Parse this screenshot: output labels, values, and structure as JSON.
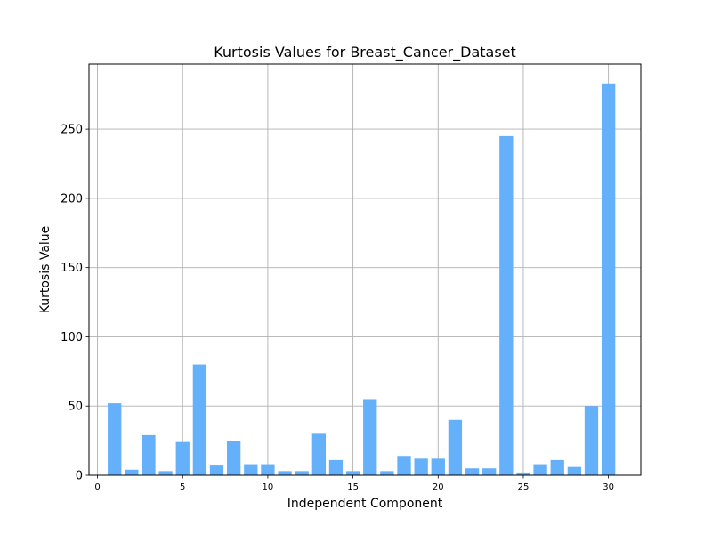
{
  "chart_data": {
    "type": "bar",
    "title": "Kurtosis Values for Breast_Cancer_Dataset",
    "xlabel": "Independent Component",
    "ylabel": "Kurtosis Value",
    "x": [
      1,
      2,
      3,
      4,
      5,
      6,
      7,
      8,
      9,
      10,
      11,
      12,
      13,
      14,
      15,
      16,
      17,
      18,
      19,
      20,
      21,
      22,
      23,
      24,
      25,
      26,
      27,
      28,
      29,
      30
    ],
    "values": [
      52,
      4,
      29,
      3,
      24,
      80,
      7,
      25,
      8,
      8,
      3,
      3,
      30,
      11,
      3,
      55,
      3,
      14,
      12,
      12,
      40,
      5,
      5,
      245,
      2,
      8,
      11,
      6,
      50,
      283
    ],
    "xlim": [
      -0.5,
      31.9
    ],
    "ylim": [
      0,
      297
    ],
    "xticks": [
      0,
      5,
      10,
      15,
      20,
      25,
      30
    ],
    "yticks": [
      0,
      50,
      100,
      150,
      200,
      250
    ],
    "grid": true,
    "bar_color": "#64B0FA"
  }
}
